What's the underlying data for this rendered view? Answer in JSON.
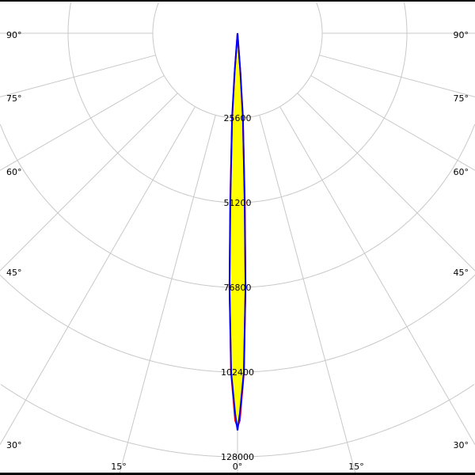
{
  "chart_data": {
    "type": "polar",
    "radial_ticks": [
      25600,
      51200,
      76800,
      102400,
      128000
    ],
    "radial_max": 128000,
    "angle_ticks": [
      "0°",
      "15°",
      "30°",
      "45°",
      "60°",
      "75°",
      "90°"
    ],
    "angle_tick_values": [
      0,
      15,
      30,
      45,
      60,
      75,
      90
    ],
    "grid": true,
    "series": [
      {
        "color": "#ffff00",
        "fill": true,
        "angles": [
          -5,
          -4.2,
          -3.5,
          -2.4,
          -1.7,
          -1.0,
          -0.3,
          0,
          0.3,
          1.0,
          1.7,
          2.4,
          3.5,
          4.2,
          5
        ],
        "values": [
          0,
          11000,
          25600,
          51200,
          76800,
          102400,
          116000,
          118000,
          116000,
          102400,
          76800,
          51200,
          25600,
          11000,
          0
        ]
      },
      {
        "color": "#ff0000",
        "fill": false,
        "angles": [
          -5,
          -4.3,
          -3.6,
          -2.5,
          -1.8,
          -1.1,
          -0.35,
          0,
          0.35,
          1.1,
          1.8,
          2.5,
          3.6,
          4.3,
          5
        ],
        "values": [
          0,
          11000,
          25600,
          51200,
          76800,
          102400,
          117000,
          119000,
          117000,
          102400,
          76800,
          51200,
          25600,
          11000,
          0
        ]
      },
      {
        "color": "#0000ff",
        "fill": false,
        "angles": [
          -5,
          -4.2,
          -3.7,
          -2.4,
          -1.8,
          -1.07,
          -0.35,
          0,
          0.35,
          1.07,
          1.8,
          2.4,
          3.7,
          4.2,
          5
        ],
        "values": [
          0,
          12000,
          25600,
          51200,
          76800,
          102400,
          115000,
          120000,
          115000,
          102400,
          76800,
          51200,
          25600,
          12000,
          0
        ]
      }
    ]
  }
}
